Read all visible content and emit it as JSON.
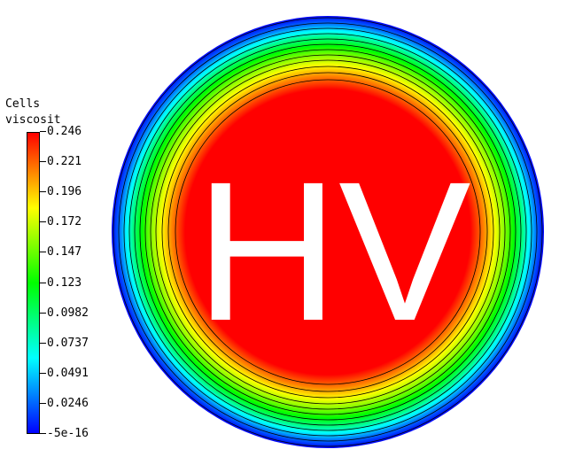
{
  "legend": {
    "title_line1": "Cells",
    "title_line2": "viscosit",
    "ticks": [
      "0.246",
      "0.221",
      "0.196",
      "0.172",
      "0.147",
      "0.123",
      "0.0982",
      "0.0737",
      "0.0491",
      "0.0246",
      "-5e-16"
    ],
    "min": -5e-16,
    "max": 0.246
  },
  "overlay_text": "HV",
  "colors": {
    "scale": [
      "#ff0000",
      "#ff8000",
      "#ffff00",
      "#80ff00",
      "#00ff00",
      "#00ff80",
      "#00ffff",
      "#0080ff",
      "#0000ff"
    ],
    "background": "#ffffff"
  }
}
